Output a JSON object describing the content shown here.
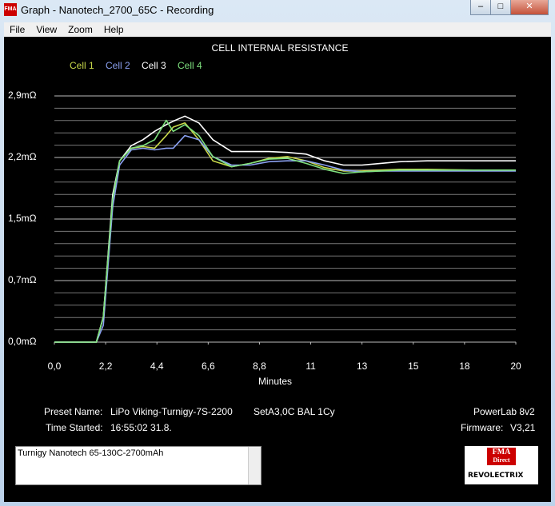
{
  "window": {
    "title": "Graph - Nanotech_2700_65C - Recording"
  },
  "menu": {
    "items": [
      "File",
      "View",
      "Zoom",
      "Help"
    ]
  },
  "chart_data": {
    "type": "line",
    "title": "CELL INTERNAL RESISTANCE",
    "x_label": "Minutes",
    "x": [
      0,
      1.8,
      2.1,
      2.5,
      2.8,
      3.3,
      3.8,
      4.3,
      4.8,
      5.1,
      5.6,
      6.2,
      6.8,
      7.6,
      8.4,
      9.2,
      10,
      10.8,
      11.6,
      12.4,
      13.2,
      14,
      14.8,
      16,
      18,
      19.8
    ],
    "series": [
      {
        "name": "Cell 1",
        "color": "#c8d84a",
        "values": [
          0,
          0,
          0.3,
          1.7,
          2.15,
          2.3,
          2.32,
          2.3,
          2.45,
          2.55,
          2.6,
          2.4,
          2.15,
          2.08,
          2.12,
          2.18,
          2.2,
          2.15,
          2.07,
          2.03,
          2.03,
          2.04,
          2.05,
          2.05,
          2.04,
          2.04
        ]
      },
      {
        "name": "Cell 2",
        "color": "#8aa0f0",
        "values": [
          0,
          0,
          0.2,
          1.6,
          2.1,
          2.28,
          2.3,
          2.28,
          2.3,
          2.3,
          2.45,
          2.4,
          2.2,
          2.1,
          2.1,
          2.14,
          2.15,
          2.15,
          2.1,
          2.04,
          2.02,
          2.03,
          2.03,
          2.03,
          2.03,
          2.03
        ]
      },
      {
        "name": "Cell 3",
        "color": "#ffffff",
        "values": [
          0,
          0,
          0.3,
          1.75,
          2.15,
          2.33,
          2.4,
          2.5,
          2.58,
          2.62,
          2.68,
          2.6,
          2.4,
          2.26,
          2.26,
          2.26,
          2.25,
          2.23,
          2.15,
          2.1,
          2.1,
          2.12,
          2.14,
          2.15,
          2.15,
          2.15
        ]
      },
      {
        "name": "Cell 4",
        "color": "#7ee07e",
        "values": [
          0,
          0,
          0.3,
          1.7,
          2.15,
          2.3,
          2.33,
          2.4,
          2.63,
          2.5,
          2.58,
          2.45,
          2.2,
          2.08,
          2.12,
          2.17,
          2.18,
          2.12,
          2.05,
          2.0,
          2.02,
          2.03,
          2.04,
          2.04,
          2.04,
          2.04
        ]
      }
    ],
    "xlim": [
      0,
      19.8
    ],
    "xticks": [
      {
        "value": 0,
        "label": "0,0"
      },
      {
        "value": 2.2,
        "label": "2,2"
      },
      {
        "value": 4.4,
        "label": "4,4"
      },
      {
        "value": 6.6,
        "label": "6,6"
      },
      {
        "value": 8.8,
        "label": "8,8"
      },
      11,
      {
        "value": 13.2,
        "label": "13"
      },
      {
        "value": 15.4,
        "label": "15"
      },
      {
        "value": 17.6,
        "label": "18"
      },
      {
        "value": 19.8,
        "label": "20"
      }
    ],
    "ylim": [
      0,
      2.92
    ],
    "yticks": [
      {
        "value": 0,
        "label": "0,0mΩ"
      },
      {
        "value": 0.73,
        "label": "0,7mΩ"
      },
      {
        "value": 1.46,
        "label": "1,5mΩ"
      },
      {
        "value": 2.19,
        "label": "2,2mΩ"
      },
      {
        "value": 2.92,
        "label": "2,9mΩ"
      }
    ],
    "grid": true,
    "minor_grid": 5
  },
  "info": {
    "preset_label": "Preset Name:",
    "preset": "LiPo Viking-Turnigy-7S-2200",
    "setting": "SetA3,0C BAL 1Cy",
    "device": "PowerLab 8v2",
    "time_label": "Time Started:",
    "time": "16:55:02  31.8.",
    "firmware_label": "Firmware:",
    "firmware": "V3,21"
  },
  "notes": "Turnigy Nanotech 65-130C-2700mAh",
  "logo": {
    "top": "FMA",
    "middle": "Direct",
    "bottom": "REVOLECTRIX"
  }
}
